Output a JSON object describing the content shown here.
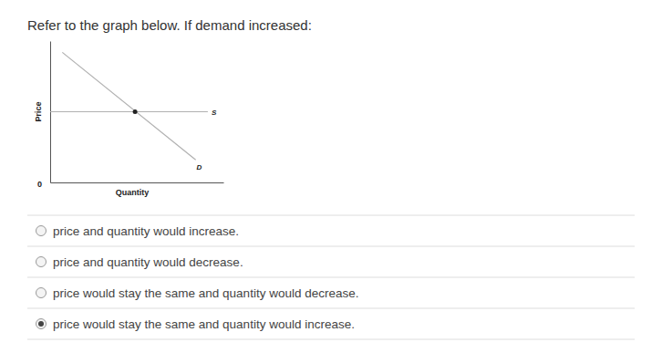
{
  "question": "Refer to the graph below. If demand increased:",
  "chart_data": {
    "type": "line",
    "xlabel": "Quantity",
    "ylabel": "Price",
    "xlim": [
      0,
      10
    ],
    "ylim": [
      0,
      10
    ],
    "xticks": [
      0
    ],
    "yticks": [],
    "tick_labels": "x",
    "series": [
      {
        "name": "S",
        "type": "line",
        "color": "#b0b0b0",
        "x": [
          0,
          9.1
        ],
        "values": [
          5,
          5
        ]
      },
      {
        "name": "D",
        "type": "line",
        "color": "#b0b0b0",
        "x": [
          0.7,
          8.4
        ],
        "values": [
          9.2,
          1.6
        ]
      },
      {
        "type": "scatter",
        "color": "#222222",
        "x": [
          4.9
        ],
        "values": [
          5
        ]
      }
    ]
  },
  "options": [
    {
      "text": "price and quantity would increase.",
      "selected": false
    },
    {
      "text": "price and quantity would decrease.",
      "selected": false
    },
    {
      "text": "price would stay the same and quantity would decrease.",
      "selected": false
    },
    {
      "text": "price would stay the same and quantity would increase.",
      "selected": true
    }
  ]
}
